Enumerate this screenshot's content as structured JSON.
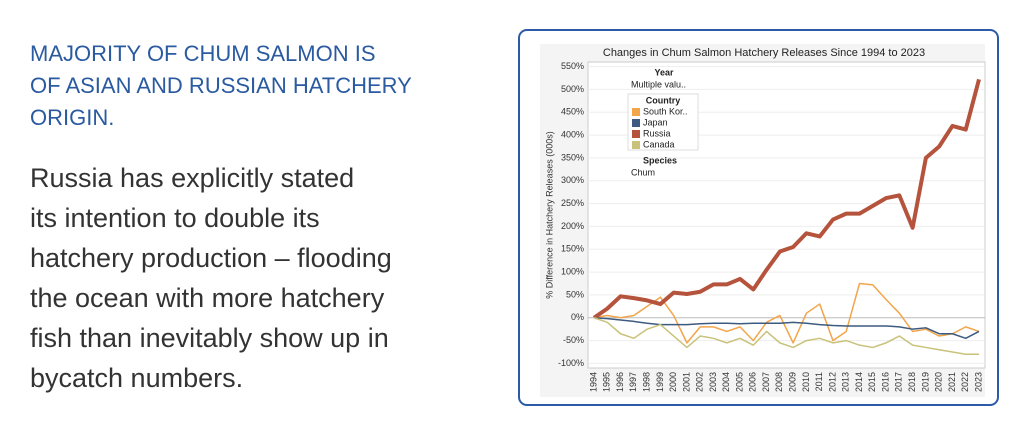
{
  "heading": [
    "MAJORITY OF CHUM SALMON IS",
    "OF ASIAN AND RUSSIAN HATCHERY",
    "ORIGIN."
  ],
  "body": [
    "Russia has explicitly stated",
    "its intention to double its",
    "hatchery production – flooding",
    "the ocean with more hatchery",
    "fish than inevitably show up in",
    "bycatch numbers."
  ],
  "chart_data": {
    "type": "line",
    "title": "Changes in Chum Salmon Hatchery Releases Since 1994 to 2023",
    "y_label": "% Difference in Hatchery Releases (000s)",
    "filters": {
      "year_title": "Year",
      "year_value": "Multiple valu..",
      "species_title": "Species",
      "species_value": "Chum"
    },
    "legend_title": "Country",
    "categories": [
      "1994",
      "1995",
      "1996",
      "1997",
      "1998",
      "1999",
      "2000",
      "2001",
      "2002",
      "2003",
      "2004",
      "2005",
      "2006",
      "2007",
      "2008",
      "2009",
      "2010",
      "2011",
      "2012",
      "2013",
      "2014",
      "2015",
      "2016",
      "2017",
      "2018",
      "2019",
      "2020",
      "2021",
      "2022",
      "2023"
    ],
    "series": [
      {
        "name": "South Kor..",
        "color": "#f2a54a",
        "width": 1.5,
        "values": [
          0,
          5,
          0,
          5,
          25,
          45,
          5,
          -55,
          -20,
          -20,
          -30,
          -20,
          -50,
          -10,
          5,
          -55,
          10,
          30,
          -50,
          -30,
          75,
          72,
          40,
          10,
          -30,
          -25,
          -40,
          -35,
          -20,
          -30
        ]
      },
      {
        "name": "Japan",
        "color": "#3d5a80",
        "width": 1.5,
        "values": [
          0,
          -2,
          -5,
          -8,
          -12,
          -15,
          -15,
          -15,
          -13,
          -12,
          -12,
          -13,
          -12,
          -12,
          -12,
          -10,
          -12,
          -15,
          -17,
          -18,
          -18,
          -18,
          -18,
          -20,
          -25,
          -22,
          -35,
          -35,
          -45,
          -30
        ]
      },
      {
        "name": "Russia",
        "color": "#b5533c",
        "width": 4,
        "values": [
          0,
          20,
          47,
          43,
          38,
          30,
          55,
          52,
          57,
          73,
          73,
          85,
          62,
          105,
          145,
          155,
          185,
          178,
          215,
          228,
          228,
          245,
          262,
          268,
          197,
          350,
          375,
          420,
          412,
          522
        ]
      },
      {
        "name": "Canada",
        "color": "#c9c27a",
        "width": 1.5,
        "values": [
          0,
          -10,
          -35,
          -45,
          -25,
          -15,
          -40,
          -65,
          -40,
          -45,
          -55,
          -45,
          -60,
          -30,
          -55,
          -65,
          -50,
          -45,
          -55,
          -50,
          -60,
          -65,
          -55,
          -40,
          -60,
          -65,
          -70,
          -75,
          -80,
          -80
        ]
      }
    ],
    "ylim": [
      -110,
      560
    ],
    "yticks": [
      {
        "value": -100,
        "label": "-100%"
      },
      {
        "value": -50,
        "label": "-50%"
      },
      {
        "value": 0,
        "label": "0%"
      },
      {
        "value": 50,
        "label": "50%"
      },
      {
        "value": 100,
        "label": "100%"
      },
      {
        "value": 150,
        "label": "150%"
      },
      {
        "value": 200,
        "label": "200%"
      },
      {
        "value": 250,
        "label": "250%"
      },
      {
        "value": 300,
        "label": "300%"
      },
      {
        "value": 350,
        "label": "350%"
      },
      {
        "value": 400,
        "label": "400%"
      },
      {
        "value": 450,
        "label": "450%"
      },
      {
        "value": 500,
        "label": "500%"
      },
      {
        "value": 550,
        "label": "550%"
      }
    ],
    "grid": true
  }
}
